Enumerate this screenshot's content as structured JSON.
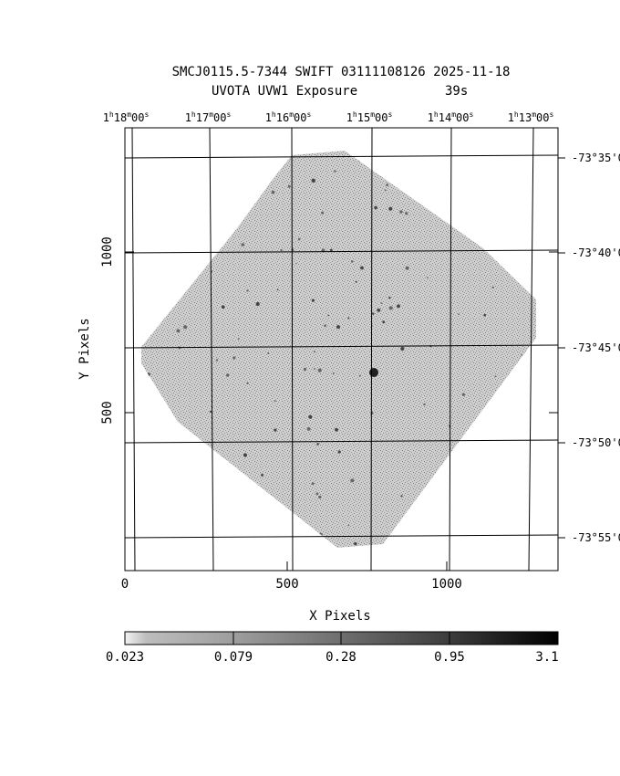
{
  "header": {
    "title": "SMCJ0115.5-7344 SWIFT 03111108126 2025-11-18",
    "subtitle": "UVOTA UVW1 Exposure",
    "exposure": "39s"
  },
  "ra_labels": [
    {
      "h": "1",
      "m": "18",
      "s": "00"
    },
    {
      "h": "1",
      "m": "17",
      "s": "00"
    },
    {
      "h": "1",
      "m": "16",
      "s": "00"
    },
    {
      "h": "1",
      "m": "15",
      "s": "00"
    },
    {
      "h": "1",
      "m": "14",
      "s": "00"
    },
    {
      "h": "1",
      "m": "13",
      "s": "00"
    }
  ],
  "dec_labels": [
    "-73°35'0",
    "-73°40'0",
    "-73°45'0",
    "-73°50'0",
    "-73°55'0"
  ],
  "x_axis": {
    "label": "X Pixels",
    "ticks": [
      "0",
      "500",
      "1000"
    ]
  },
  "y_axis": {
    "label": "Y Pixels",
    "ticks": [
      "500",
      "1000"
    ]
  },
  "colorbar": {
    "labels": [
      "0.023",
      "0.079",
      "0.28",
      "0.95",
      "3.1"
    ]
  }
}
